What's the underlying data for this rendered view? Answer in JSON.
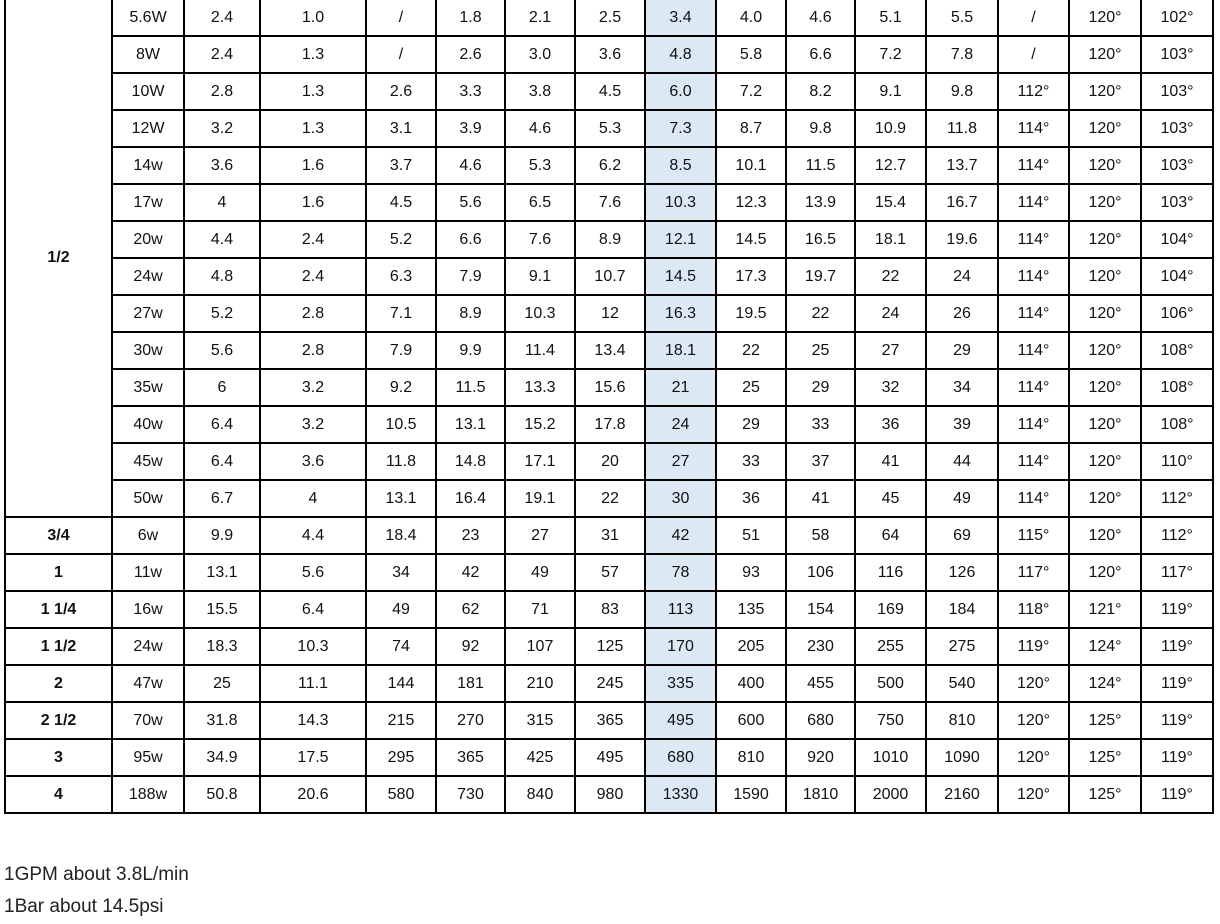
{
  "highlight_column": 8,
  "highlight_color": "#dce9f5",
  "groups": [
    {
      "size": "1/2",
      "rows": [
        [
          "5.6W",
          "2.4",
          "1.0",
          "/",
          "1.8",
          "2.1",
          "2.5",
          "3.4",
          "4.0",
          "4.6",
          "5.1",
          "5.5",
          "/",
          "120°",
          "102°"
        ],
        [
          "8W",
          "2.4",
          "1.3",
          "/",
          "2.6",
          "3.0",
          "3.6",
          "4.8",
          "5.8",
          "6.6",
          "7.2",
          "7.8",
          "/",
          "120°",
          "103°"
        ],
        [
          "10W",
          "2.8",
          "1.3",
          "2.6",
          "3.3",
          "3.8",
          "4.5",
          "6.0",
          "7.2",
          "8.2",
          "9.1",
          "9.8",
          "112°",
          "120°",
          "103°"
        ],
        [
          "12W",
          "3.2",
          "1.3",
          "3.1",
          "3.9",
          "4.6",
          "5.3",
          "7.3",
          "8.7",
          "9.8",
          "10.9",
          "11.8",
          "114°",
          "120°",
          "103°"
        ],
        [
          "14w",
          "3.6",
          "1.6",
          "3.7",
          "4.6",
          "5.3",
          "6.2",
          "8.5",
          "10.1",
          "11.5",
          "12.7",
          "13.7",
          "114°",
          "120°",
          "103°"
        ],
        [
          "17w",
          "4",
          "1.6",
          "4.5",
          "5.6",
          "6.5",
          "7.6",
          "10.3",
          "12.3",
          "13.9",
          "15.4",
          "16.7",
          "114°",
          "120°",
          "103°"
        ],
        [
          "20w",
          "4.4",
          "2.4",
          "5.2",
          "6.6",
          "7.6",
          "8.9",
          "12.1",
          "14.5",
          "16.5",
          "18.1",
          "19.6",
          "114°",
          "120°",
          "104°"
        ],
        [
          "24w",
          "4.8",
          "2.4",
          "6.3",
          "7.9",
          "9.1",
          "10.7",
          "14.5",
          "17.3",
          "19.7",
          "22",
          "24",
          "114°",
          "120°",
          "104°"
        ],
        [
          "27w",
          "5.2",
          "2.8",
          "7.1",
          "8.9",
          "10.3",
          "12",
          "16.3",
          "19.5",
          "22",
          "24",
          "26",
          "114°",
          "120°",
          "106°"
        ],
        [
          "30w",
          "5.6",
          "2.8",
          "7.9",
          "9.9",
          "11.4",
          "13.4",
          "18.1",
          "22",
          "25",
          "27",
          "29",
          "114°",
          "120°",
          "108°"
        ],
        [
          "35w",
          "6",
          "3.2",
          "9.2",
          "11.5",
          "13.3",
          "15.6",
          "21",
          "25",
          "29",
          "32",
          "34",
          "114°",
          "120°",
          "108°"
        ],
        [
          "40w",
          "6.4",
          "3.2",
          "10.5",
          "13.1",
          "15.2",
          "17.8",
          "24",
          "29",
          "33",
          "36",
          "39",
          "114°",
          "120°",
          "108°"
        ],
        [
          "45w",
          "6.4",
          "3.6",
          "11.8",
          "14.8",
          "17.1",
          "20",
          "27",
          "33",
          "37",
          "41",
          "44",
          "114°",
          "120°",
          "110°"
        ],
        [
          "50w",
          "6.7",
          "4",
          "13.1",
          "16.4",
          "19.1",
          "22",
          "30",
          "36",
          "41",
          "45",
          "49",
          "114°",
          "120°",
          "112°"
        ]
      ]
    },
    {
      "size": "3/4",
      "rows": [
        [
          "6w",
          "9.9",
          "4.4",
          "18.4",
          "23",
          "27",
          "31",
          "42",
          "51",
          "58",
          "64",
          "69",
          "115°",
          "120°",
          "112°"
        ]
      ]
    },
    {
      "size": "1",
      "rows": [
        [
          "11w",
          "13.1",
          "5.6",
          "34",
          "42",
          "49",
          "57",
          "78",
          "93",
          "106",
          "116",
          "126",
          "117°",
          "120°",
          "117°"
        ]
      ]
    },
    {
      "size": "1 1/4",
      "rows": [
        [
          "16w",
          "15.5",
          "6.4",
          "49",
          "62",
          "71",
          "83",
          "113",
          "135",
          "154",
          "169",
          "184",
          "118°",
          "121°",
          "119°"
        ]
      ]
    },
    {
      "size": "1 1/2",
      "rows": [
        [
          "24w",
          "18.3",
          "10.3",
          "74",
          "92",
          "107",
          "125",
          "170",
          "205",
          "230",
          "255",
          "275",
          "119°",
          "124°",
          "119°"
        ]
      ]
    },
    {
      "size": "2",
      "rows": [
        [
          "47w",
          "25",
          "11.1",
          "144",
          "181",
          "210",
          "245",
          "335",
          "400",
          "455",
          "500",
          "540",
          "120°",
          "124°",
          "119°"
        ]
      ]
    },
    {
      "size": "2 1/2",
      "rows": [
        [
          "70w",
          "31.8",
          "14.3",
          "215",
          "270",
          "315",
          "365",
          "495",
          "600",
          "680",
          "750",
          "810",
          "120°",
          "125°",
          "119°"
        ]
      ]
    },
    {
      "size": "3",
      "rows": [
        [
          "95w",
          "34.9",
          "17.5",
          "295",
          "365",
          "425",
          "495",
          "680",
          "810",
          "920",
          "1010",
          "1090",
          "120°",
          "125°",
          "119°"
        ]
      ]
    },
    {
      "size": "4",
      "rows": [
        [
          "188w",
          "50.8",
          "20.6",
          "580",
          "730",
          "840",
          "980",
          "1330",
          "1590",
          "1810",
          "2000",
          "2160",
          "120°",
          "125°",
          "119°"
        ]
      ]
    }
  ],
  "notes": [
    "1GPM about 3.8L/min",
    "1Bar about 14.5psi"
  ]
}
